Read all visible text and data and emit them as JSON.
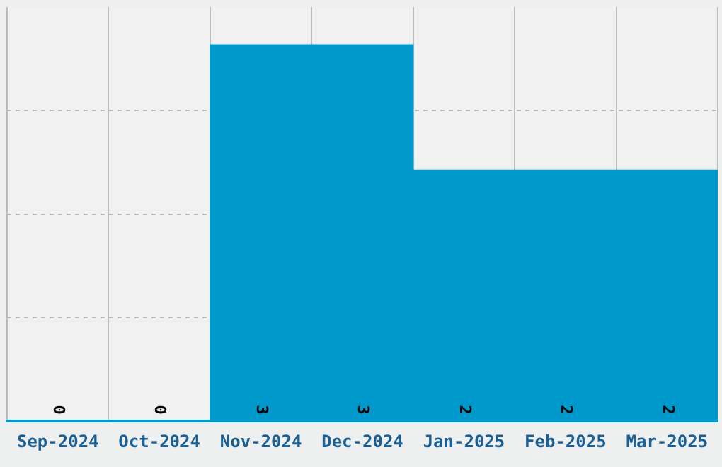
{
  "chart_data": {
    "type": "bar",
    "categories": [
      "Sep-2024",
      "Oct-2024",
      "Nov-2024",
      "Dec-2024",
      "Jan-2025",
      "Feb-2025",
      "Mar-2025"
    ],
    "values": [
      0,
      0,
      3,
      3,
      2,
      2,
      2
    ],
    "color": "#0099cc",
    "ylim": [
      0,
      3.3
    ],
    "yticks": [
      {
        "value": 0.825,
        "label": null
      },
      {
        "value": 1.65,
        "label": null
      },
      {
        "value": 2.475,
        "label": null
      }
    ],
    "tick_labels": "x",
    "grid": true,
    "data_labels": true
  }
}
